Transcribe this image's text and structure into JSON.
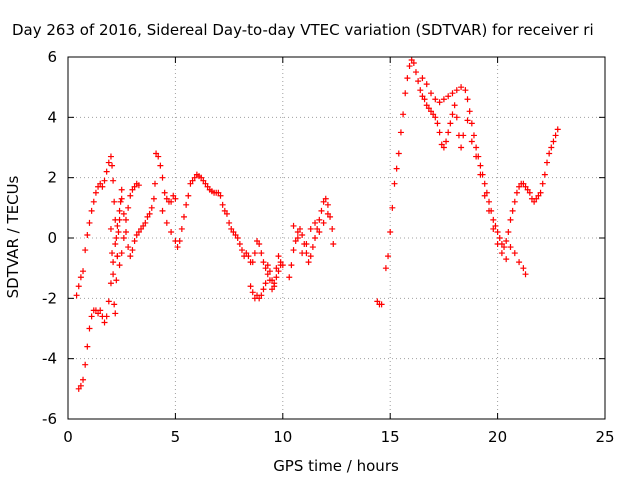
{
  "chart_data": {
    "type": "scatter",
    "title": "Day 263 of 2016, Sidereal Day-to-day VTEC variation (SDTVAR) for receiver ri",
    "xlabel": "GPS time / hours",
    "ylabel": "SDTVAR / TECUs",
    "xlim": [
      0,
      25
    ],
    "ylim": [
      -6,
      6
    ],
    "xticks": [
      0,
      5,
      10,
      15,
      20,
      25
    ],
    "yticks": [
      -6,
      -4,
      -2,
      0,
      2,
      4,
      6
    ],
    "grid": true,
    "marker": "+",
    "color": "#ff0000",
    "series": [
      {
        "points": [
          [
            0.4,
            -1.9
          ],
          [
            0.5,
            -1.6
          ],
          [
            0.6,
            -1.3
          ],
          [
            0.7,
            -1.1
          ],
          [
            0.8,
            -0.4
          ],
          [
            0.9,
            0.1
          ],
          [
            1.0,
            0.5
          ],
          [
            1.1,
            0.9
          ],
          [
            1.2,
            1.2
          ],
          [
            1.3,
            1.5
          ],
          [
            1.4,
            1.7
          ],
          [
            1.5,
            1.8
          ],
          [
            1.6,
            1.7
          ],
          [
            1.7,
            1.9
          ],
          [
            1.8,
            2.2
          ],
          [
            1.9,
            2.5
          ],
          [
            2.0,
            2.7
          ],
          [
            2.05,
            2.4
          ],
          [
            2.1,
            1.9
          ],
          [
            2.15,
            1.2
          ],
          [
            2.2,
            0.6
          ],
          [
            2.25,
            0.0
          ],
          [
            2.3,
            -0.6
          ],
          [
            2.4,
            -0.9
          ],
          [
            2.5,
            -0.5
          ],
          [
            2.6,
            0.0
          ],
          [
            2.7,
            0.6
          ],
          [
            2.8,
            1.0
          ],
          [
            2.9,
            1.4
          ],
          [
            3.0,
            1.6
          ],
          [
            3.1,
            1.7
          ],
          [
            3.2,
            1.8
          ],
          [
            3.3,
            1.75
          ],
          [
            0.5,
            -5.0
          ],
          [
            0.6,
            -4.9
          ],
          [
            0.7,
            -4.7
          ],
          [
            0.8,
            -4.2
          ],
          [
            0.9,
            -3.6
          ],
          [
            1.0,
            -3.0
          ],
          [
            1.1,
            -2.6
          ],
          [
            1.2,
            -2.4
          ],
          [
            1.3,
            -2.4
          ],
          [
            1.4,
            -2.5
          ],
          [
            1.5,
            -2.4
          ],
          [
            1.6,
            -2.6
          ],
          [
            1.7,
            -2.8
          ],
          [
            1.8,
            -2.6
          ],
          [
            1.9,
            -2.1
          ],
          [
            2.0,
            -1.5
          ],
          [
            2.1,
            -0.8
          ],
          [
            2.2,
            -0.2
          ],
          [
            2.3,
            0.4
          ],
          [
            2.4,
            0.9
          ],
          [
            2.5,
            1.3
          ],
          [
            2.6,
            0.8
          ],
          [
            2.7,
            0.2
          ],
          [
            2.8,
            -0.3
          ],
          [
            2.9,
            -0.6
          ],
          [
            3.0,
            -0.4
          ],
          [
            3.1,
            -0.1
          ],
          [
            3.2,
            0.1
          ],
          [
            3.3,
            0.2
          ],
          [
            3.4,
            0.3
          ],
          [
            3.5,
            0.4
          ],
          [
            3.6,
            0.5
          ],
          [
            3.7,
            0.7
          ],
          [
            3.8,
            0.8
          ],
          [
            3.9,
            1.0
          ],
          [
            4.0,
            1.3
          ],
          [
            4.05,
            1.8
          ],
          [
            2.0,
            0.3
          ],
          [
            2.05,
            -0.5
          ],
          [
            2.1,
            -1.2
          ],
          [
            2.15,
            -2.2
          ],
          [
            2.2,
            -2.5
          ],
          [
            2.25,
            -1.4
          ],
          [
            2.3,
            -0.6
          ],
          [
            2.35,
            0.2
          ],
          [
            2.4,
            0.6
          ],
          [
            2.45,
            1.2
          ],
          [
            2.5,
            1.6
          ],
          [
            4.1,
            2.8
          ],
          [
            4.2,
            2.7
          ],
          [
            4.3,
            2.4
          ],
          [
            4.4,
            2.0
          ],
          [
            4.5,
            1.5
          ],
          [
            4.6,
            1.3
          ],
          [
            4.7,
            1.2
          ],
          [
            4.8,
            1.2
          ],
          [
            4.9,
            1.4
          ],
          [
            5.0,
            1.3
          ],
          [
            4.4,
            0.9
          ],
          [
            4.6,
            0.5
          ],
          [
            4.8,
            0.2
          ],
          [
            5.0,
            -0.1
          ],
          [
            5.1,
            -0.3
          ],
          [
            5.2,
            -0.1
          ],
          [
            5.3,
            0.3
          ],
          [
            5.4,
            0.7
          ],
          [
            5.5,
            1.1
          ],
          [
            5.6,
            1.4
          ],
          [
            5.7,
            1.8
          ],
          [
            5.8,
            1.9
          ],
          [
            5.9,
            2.0
          ],
          [
            6.0,
            2.1
          ],
          [
            6.1,
            2.05
          ],
          [
            6.2,
            2.0
          ],
          [
            6.3,
            1.9
          ],
          [
            6.4,
            1.8
          ],
          [
            6.5,
            1.7
          ],
          [
            6.6,
            1.6
          ],
          [
            6.7,
            1.55
          ],
          [
            6.8,
            1.5
          ],
          [
            6.9,
            1.5
          ],
          [
            7.0,
            1.5
          ],
          [
            7.1,
            1.4
          ],
          [
            7.2,
            1.1
          ],
          [
            7.3,
            0.9
          ],
          [
            7.4,
            0.8
          ],
          [
            7.5,
            0.5
          ],
          [
            7.6,
            0.3
          ],
          [
            7.7,
            0.2
          ],
          [
            7.8,
            0.1
          ],
          [
            7.9,
            0.0
          ],
          [
            8.0,
            -0.2
          ],
          [
            8.1,
            -0.4
          ],
          [
            8.2,
            -0.6
          ],
          [
            8.3,
            -0.5
          ],
          [
            8.4,
            -0.6
          ],
          [
            8.5,
            -0.8
          ],
          [
            8.6,
            -0.8
          ],
          [
            8.7,
            -0.5
          ],
          [
            8.8,
            -0.1
          ],
          [
            8.9,
            -0.2
          ],
          [
            9.0,
            -0.5
          ],
          [
            9.1,
            -0.8
          ],
          [
            9.2,
            -1.0
          ],
          [
            9.3,
            -0.9
          ],
          [
            9.4,
            -1.1
          ],
          [
            9.5,
            -1.4
          ],
          [
            9.6,
            -1.6
          ],
          [
            9.7,
            -1.3
          ],
          [
            9.8,
            -1.1
          ],
          [
            9.9,
            -0.9
          ],
          [
            10.0,
            -0.9
          ],
          [
            8.5,
            -1.6
          ],
          [
            8.6,
            -1.8
          ],
          [
            8.7,
            -2.0
          ],
          [
            8.8,
            -1.9
          ],
          [
            8.9,
            -2.0
          ],
          [
            9.0,
            -1.9
          ],
          [
            9.1,
            -1.7
          ],
          [
            9.2,
            -1.5
          ],
          [
            9.3,
            -1.2
          ],
          [
            9.4,
            -1.4
          ],
          [
            9.5,
            -1.7
          ],
          [
            9.6,
            -1.5
          ],
          [
            9.7,
            -1.0
          ],
          [
            9.8,
            -0.6
          ],
          [
            9.9,
            -0.8
          ],
          [
            10.3,
            -1.3
          ],
          [
            10.4,
            -0.9
          ],
          [
            10.5,
            -0.4
          ],
          [
            10.6,
            -0.1
          ],
          [
            10.7,
            0.2
          ],
          [
            10.8,
            0.3
          ],
          [
            10.9,
            0.1
          ],
          [
            11.0,
            -0.2
          ],
          [
            11.1,
            -0.5
          ],
          [
            11.2,
            -0.8
          ],
          [
            11.3,
            -0.6
          ],
          [
            11.4,
            -0.3
          ],
          [
            11.5,
            0.0
          ],
          [
            11.6,
            0.3
          ],
          [
            11.7,
            0.6
          ],
          [
            11.8,
            0.9
          ],
          [
            11.9,
            1.2
          ],
          [
            12.0,
            1.3
          ],
          [
            12.1,
            1.1
          ],
          [
            12.2,
            0.7
          ],
          [
            12.3,
            0.3
          ],
          [
            12.35,
            -0.2
          ],
          [
            10.5,
            0.4
          ],
          [
            10.7,
            0.0
          ],
          [
            10.9,
            -0.5
          ],
          [
            11.1,
            -0.2
          ],
          [
            11.3,
            0.3
          ],
          [
            11.5,
            0.5
          ],
          [
            11.7,
            0.2
          ],
          [
            11.9,
            0.5
          ],
          [
            12.1,
            0.8
          ],
          [
            14.4,
            -2.1
          ],
          [
            14.5,
            -2.2
          ],
          [
            14.6,
            -2.2
          ],
          [
            14.8,
            -1.0
          ],
          [
            14.9,
            -0.6
          ],
          [
            15.0,
            0.2
          ],
          [
            15.1,
            1.0
          ],
          [
            15.2,
            1.8
          ],
          [
            15.3,
            2.3
          ],
          [
            15.4,
            2.8
          ],
          [
            15.5,
            3.5
          ],
          [
            15.6,
            4.1
          ],
          [
            15.7,
            4.8
          ],
          [
            15.8,
            5.3
          ],
          [
            15.9,
            5.7
          ],
          [
            16.0,
            5.9
          ],
          [
            16.1,
            5.8
          ],
          [
            16.2,
            5.5
          ],
          [
            16.3,
            5.2
          ],
          [
            16.4,
            4.9
          ],
          [
            16.5,
            4.7
          ],
          [
            16.6,
            4.6
          ],
          [
            16.7,
            4.4
          ],
          [
            16.8,
            4.3
          ],
          [
            16.9,
            4.2
          ],
          [
            17.0,
            4.1
          ],
          [
            17.1,
            4.0
          ],
          [
            17.2,
            3.8
          ],
          [
            17.3,
            3.5
          ],
          [
            17.4,
            3.1
          ],
          [
            17.5,
            3.0
          ],
          [
            17.6,
            3.2
          ],
          [
            17.7,
            3.5
          ],
          [
            17.8,
            3.8
          ],
          [
            17.9,
            4.1
          ],
          [
            18.0,
            4.4
          ],
          [
            18.1,
            4.0
          ],
          [
            18.2,
            3.4
          ],
          [
            18.3,
            3.0
          ],
          [
            18.4,
            3.4
          ],
          [
            16.5,
            5.3
          ],
          [
            16.7,
            5.1
          ],
          [
            16.9,
            4.8
          ],
          [
            17.1,
            4.6
          ],
          [
            17.3,
            4.5
          ],
          [
            17.5,
            4.6
          ],
          [
            17.7,
            4.7
          ],
          [
            17.9,
            4.8
          ],
          [
            18.1,
            4.9
          ],
          [
            18.3,
            5.0
          ],
          [
            18.5,
            4.9
          ],
          [
            18.6,
            4.6
          ],
          [
            18.7,
            4.2
          ],
          [
            18.8,
            3.8
          ],
          [
            18.9,
            3.4
          ],
          [
            19.0,
            3.0
          ],
          [
            19.1,
            2.7
          ],
          [
            19.2,
            2.4
          ],
          [
            19.3,
            2.1
          ],
          [
            19.4,
            1.8
          ],
          [
            19.5,
            1.5
          ],
          [
            19.6,
            1.2
          ],
          [
            19.7,
            0.9
          ],
          [
            19.8,
            0.6
          ],
          [
            19.9,
            0.4
          ],
          [
            20.0,
            0.2
          ],
          [
            20.1,
            0.0
          ],
          [
            20.2,
            -0.2
          ],
          [
            20.3,
            -0.3
          ],
          [
            20.4,
            -0.1
          ],
          [
            20.5,
            0.2
          ],
          [
            20.6,
            0.6
          ],
          [
            20.7,
            0.9
          ],
          [
            20.8,
            1.2
          ],
          [
            20.9,
            1.5
          ],
          [
            21.0,
            1.7
          ],
          [
            21.1,
            1.8
          ],
          [
            21.2,
            1.8
          ],
          [
            21.3,
            1.7
          ],
          [
            21.4,
            1.6
          ],
          [
            21.5,
            1.5
          ],
          [
            18.6,
            3.9
          ],
          [
            18.8,
            3.2
          ],
          [
            19.0,
            2.7
          ],
          [
            19.2,
            2.1
          ],
          [
            19.4,
            1.4
          ],
          [
            19.6,
            0.9
          ],
          [
            19.8,
            0.3
          ],
          [
            20.0,
            -0.2
          ],
          [
            20.2,
            -0.5
          ],
          [
            20.4,
            -0.7
          ],
          [
            20.6,
            -0.3
          ],
          [
            20.8,
            -0.5
          ],
          [
            21.0,
            -0.8
          ],
          [
            21.2,
            -1.0
          ],
          [
            21.3,
            -1.2
          ],
          [
            21.6,
            1.3
          ],
          [
            21.7,
            1.2
          ],
          [
            21.8,
            1.3
          ],
          [
            21.9,
            1.4
          ],
          [
            22.0,
            1.5
          ],
          [
            22.1,
            1.8
          ],
          [
            22.2,
            2.1
          ],
          [
            22.3,
            2.5
          ],
          [
            22.4,
            2.8
          ],
          [
            22.5,
            3.0
          ],
          [
            22.6,
            3.2
          ],
          [
            22.7,
            3.4
          ],
          [
            22.8,
            3.6
          ]
        ]
      }
    ]
  }
}
